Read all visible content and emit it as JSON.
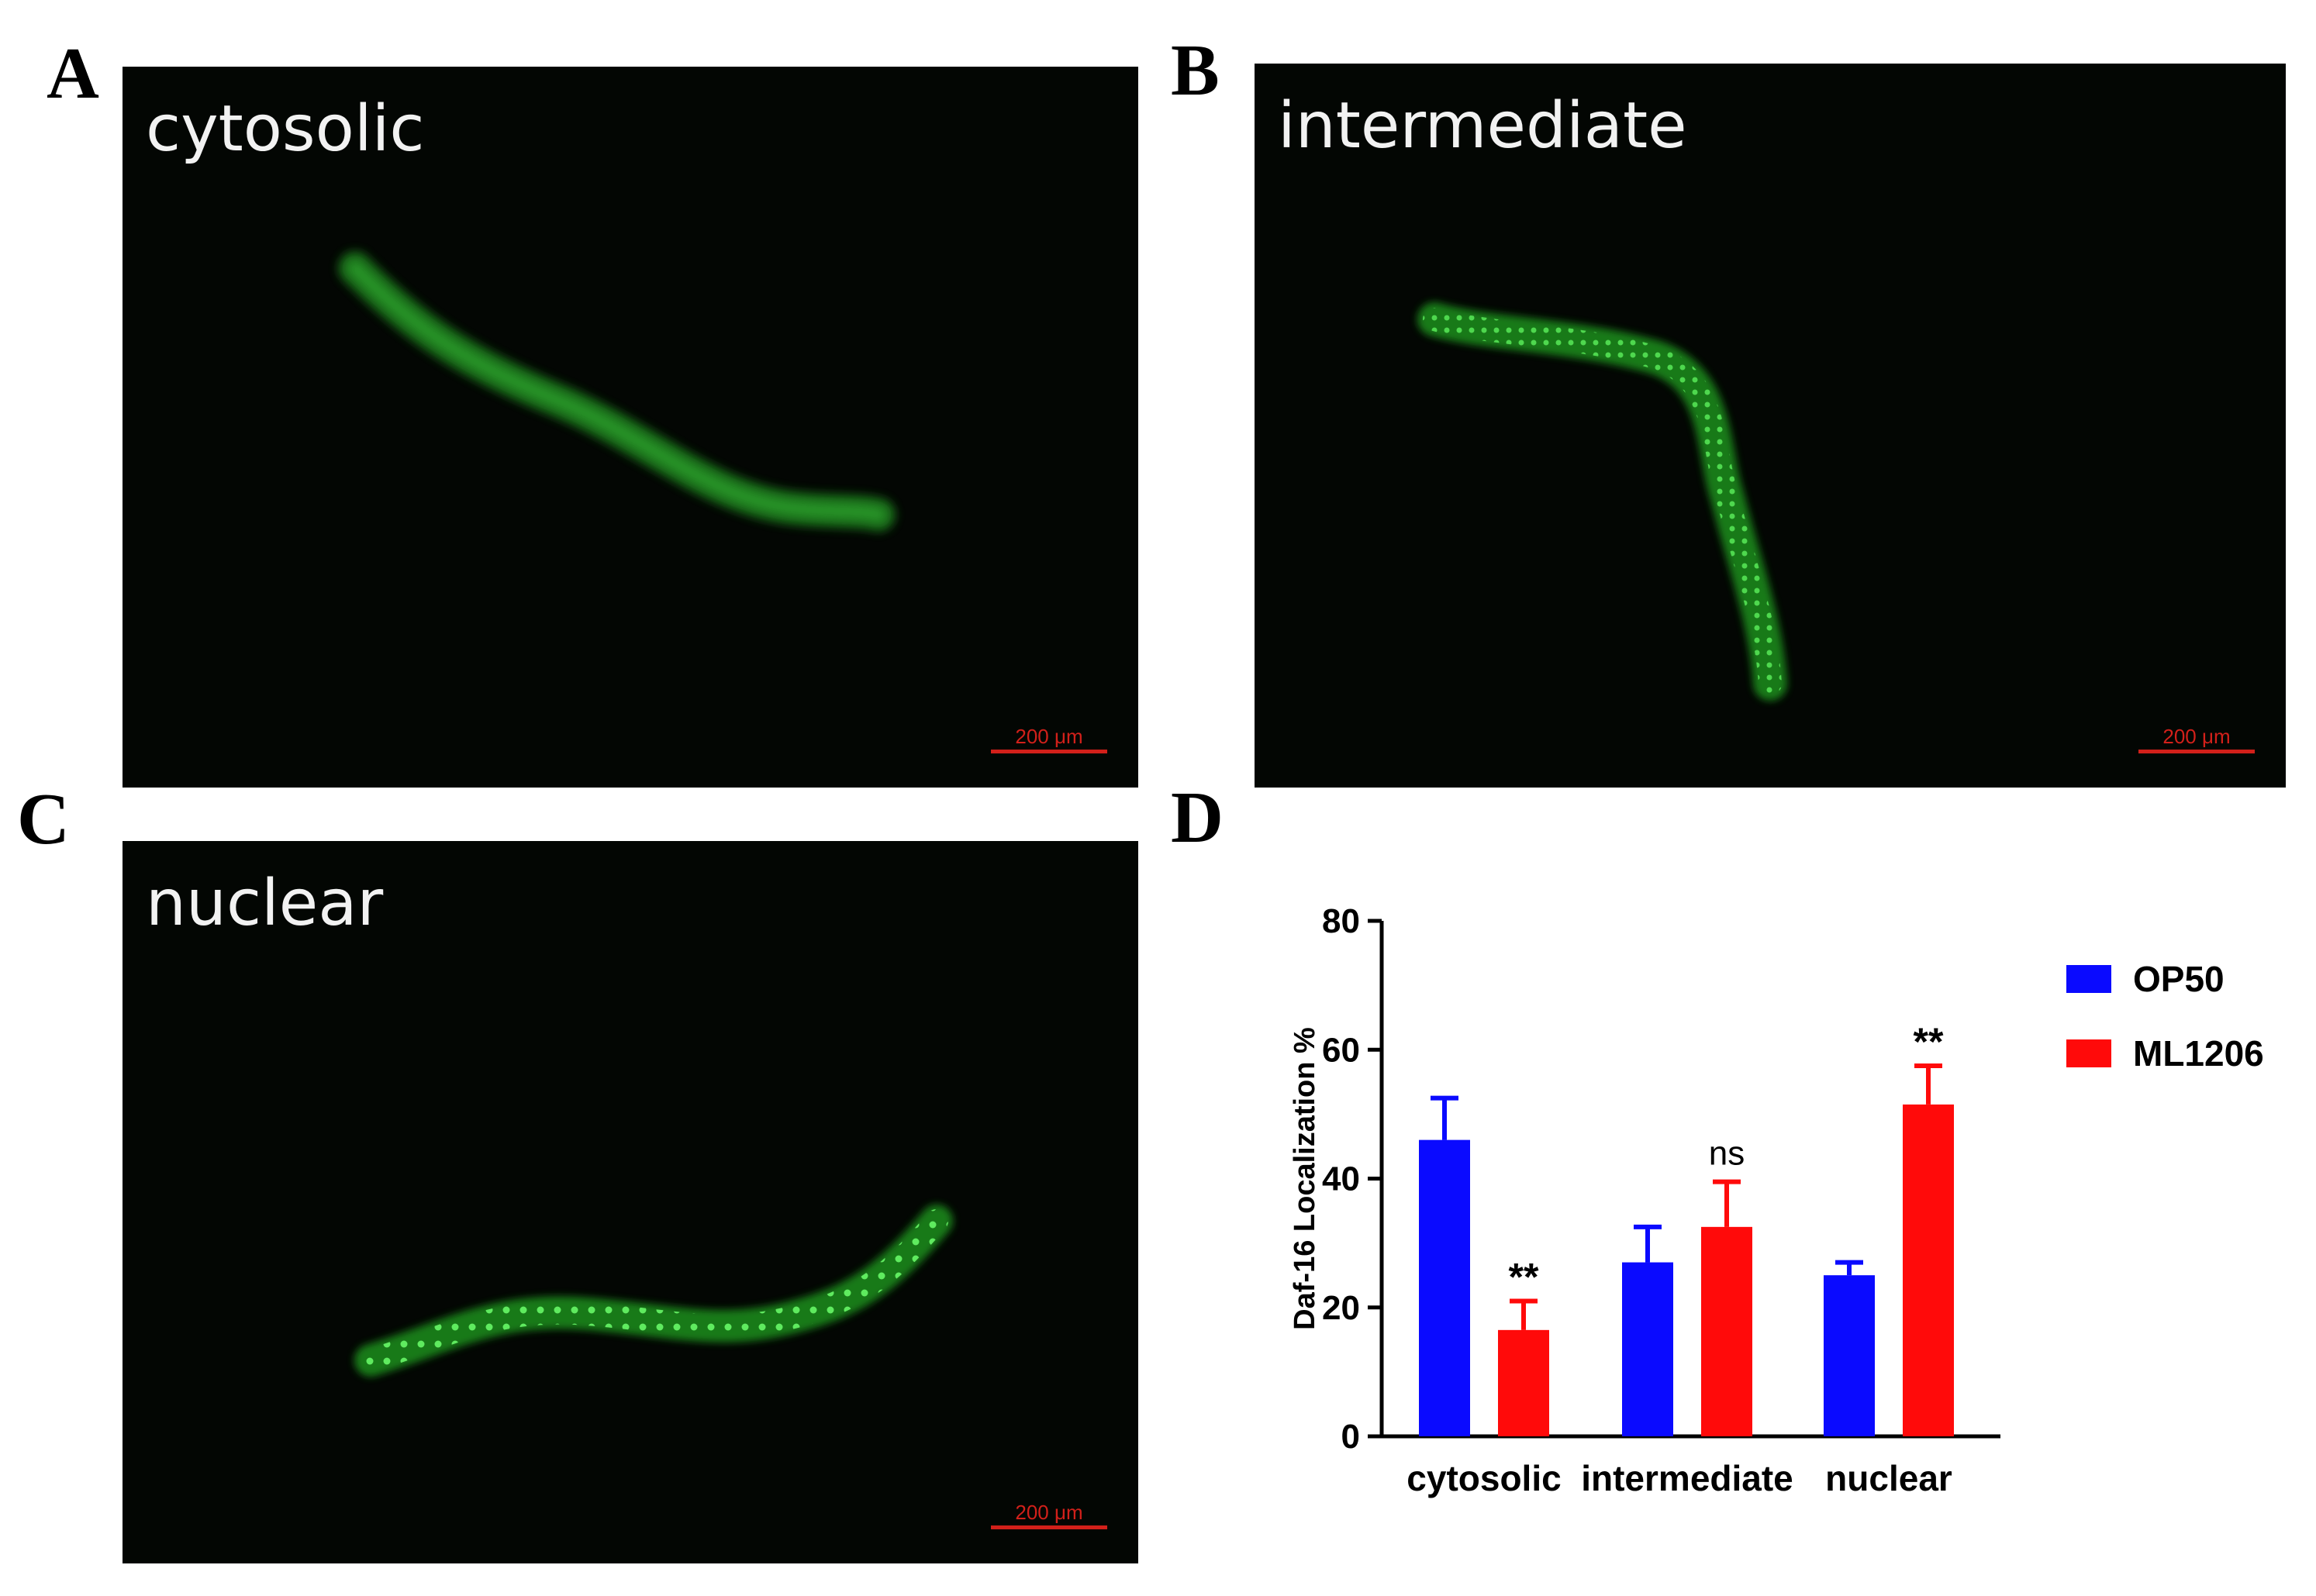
{
  "panels": {
    "a": {
      "letter": "A",
      "label": "cytosolic",
      "scale": "200 μm"
    },
    "b": {
      "letter": "B",
      "label": "intermediate",
      "scale": "200 μm"
    },
    "c": {
      "letter": "C",
      "label": "nuclear",
      "scale": "200 μm"
    },
    "d": {
      "letter": "D"
    }
  },
  "colors": {
    "op50": "#0a0aff",
    "ml1206": "#ff0a0a",
    "gfp": "#3cc83c"
  },
  "chart_data": {
    "type": "bar",
    "categories": [
      "cytosolic",
      "intermediate",
      "nuclear"
    ],
    "series": [
      {
        "name": "OP50",
        "values": [
          46,
          27,
          25
        ],
        "errors": [
          6.5,
          5.5,
          2
        ],
        "annotations": [
          "",
          "",
          ""
        ]
      },
      {
        "name": "ML1206",
        "values": [
          16.5,
          32.5,
          51.5
        ],
        "errors": [
          4.5,
          7,
          6
        ],
        "annotations": [
          "**",
          "ns",
          "**"
        ]
      }
    ],
    "ylabel": "Daf-16 Localization %",
    "xlabel": "",
    "ylim": [
      0,
      80
    ],
    "yticks": [
      0,
      20,
      40,
      60,
      80
    ],
    "legend": "top-right",
    "grid": false
  }
}
